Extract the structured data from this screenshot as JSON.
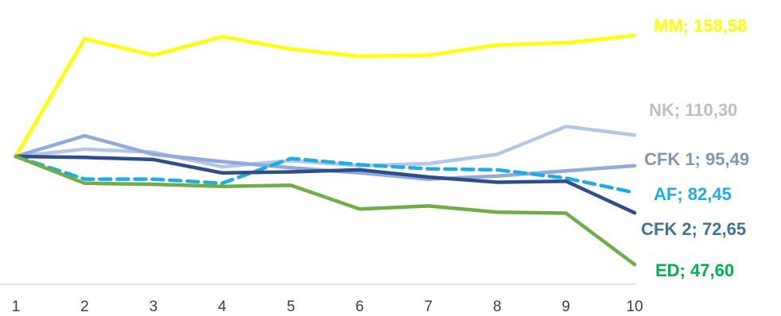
{
  "chart_data": {
    "type": "line",
    "x": [
      1,
      2,
      3,
      4,
      5,
      6,
      7,
      8,
      9,
      10
    ],
    "ylim": [
      40,
      170
    ],
    "grid": false,
    "series": [
      {
        "name": "MM",
        "end_label": "MM; 158,58",
        "color": "#FFFF00",
        "dashed": false,
        "values": [
          100,
          157.0,
          149.0,
          158.0,
          152.0,
          148.5,
          149.0,
          154.0,
          155.0,
          158.58
        ]
      },
      {
        "name": "NK",
        "end_label": "NK; 110,30",
        "color": "#B4C7E7",
        "dashed": false,
        "values": [
          100,
          103.5,
          102.0,
          95.0,
          98.0,
          95.5,
          96.5,
          101.0,
          114.5,
          110.3
        ]
      },
      {
        "name": "CFK 1",
        "end_label": "CFK 1; 95,49",
        "color": "#8FAADC",
        "dashed": false,
        "values": [
          100,
          110.0,
          101.0,
          97.5,
          94.5,
          92.0,
          89.0,
          90.5,
          93.0,
          95.49
        ]
      },
      {
        "name": "AF",
        "end_label": "AF; 82,45",
        "color": "#1CADE4",
        "dashed": true,
        "values": [
          100,
          89.0,
          89.0,
          87.0,
          99.0,
          96.0,
          94.0,
          93.5,
          89.5,
          82.45
        ]
      },
      {
        "name": "CFK 2",
        "end_label": "CFK 2; 72,65",
        "color": "#2F4D8C",
        "dashed": false,
        "values": [
          100,
          99.5,
          98.5,
          92.0,
          92.5,
          93.5,
          90.0,
          87.5,
          88.0,
          72.65
        ]
      },
      {
        "name": "ED",
        "end_label": "ED; 47,60",
        "color": "#70AD47",
        "dashed": false,
        "values": [
          100,
          87.0,
          86.5,
          85.5,
          86.0,
          74.5,
          76.0,
          73.0,
          72.5,
          47.6
        ]
      }
    ],
    "label_colors": {
      "MM": "#FFFF00",
      "NK": "#BFBFBF",
      "CFK 1": "#8497B0",
      "AF": "#1CADE4",
      "CFK 2": "#3F7496",
      "ED": "#00B050"
    },
    "axis_color": "#D9D9D9"
  }
}
